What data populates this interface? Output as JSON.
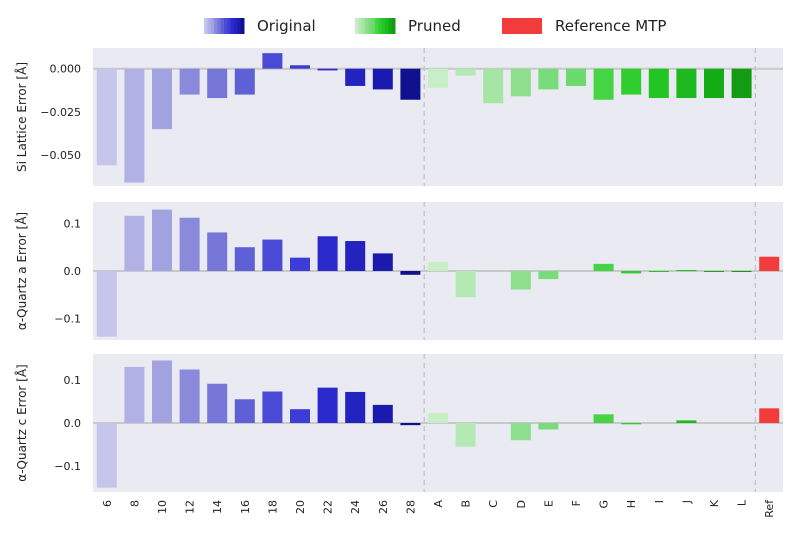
{
  "chart_data": {
    "type": "bar",
    "categories": [
      "6",
      "8",
      "10",
      "12",
      "14",
      "16",
      "18",
      "20",
      "22",
      "24",
      "26",
      "28",
      "A",
      "B",
      "C",
      "D",
      "E",
      "F",
      "G",
      "H",
      "I",
      "J",
      "K",
      "L",
      "Ref"
    ],
    "groups": {
      "original": [
        "6",
        "8",
        "10",
        "12",
        "14",
        "16",
        "18",
        "20",
        "22",
        "24",
        "26",
        "28"
      ],
      "pruned": [
        "A",
        "B",
        "C",
        "D",
        "E",
        "F",
        "G",
        "H",
        "I",
        "J",
        "K",
        "L"
      ],
      "reference": [
        "Ref"
      ]
    },
    "legend": {
      "position": "top-center",
      "entries": [
        {
          "key": "original",
          "label": "Original"
        },
        {
          "key": "pruned",
          "label": "Pruned"
        },
        {
          "key": "reference",
          "label": "Reference MTP"
        }
      ]
    },
    "colors": {
      "original": [
        "#c6c6ec",
        "#b1b1e6",
        "#a3a3e2",
        "#8a8add",
        "#7676d9",
        "#6060d6",
        "#4a4ad5",
        "#3c3cd6",
        "#2a2acc",
        "#2323bf",
        "#1a1aae",
        "#111190"
      ],
      "pruned": [
        "#c7eec7",
        "#b4e9b4",
        "#a5e6a5",
        "#8ddf8d",
        "#79db79",
        "#6bd96b",
        "#44d444",
        "#2fce2f",
        "#22c522",
        "#1eb91e",
        "#14ac14",
        "#139b13"
      ],
      "reference": "#f23b3b",
      "background": "#eaeaf2",
      "zero_line": "#c8c8c8",
      "divider": "#c0c0c0"
    },
    "panels": [
      {
        "ylabel": "Si Lattice Error [Å]",
        "ylim": [
          -0.068,
          0.012
        ],
        "yticks": [
          0.0,
          -0.025,
          -0.05
        ],
        "ytick_labels": [
          "0.000",
          "−0.025",
          "−0.050"
        ],
        "values": [
          -0.056,
          -0.066,
          -0.035,
          -0.015,
          -0.017,
          -0.015,
          0.009,
          0.002,
          -0.001,
          -0.01,
          -0.012,
          -0.018,
          -0.011,
          -0.004,
          -0.02,
          -0.016,
          -0.012,
          -0.01,
          -0.018,
          -0.015,
          -0.017,
          -0.017,
          -0.017,
          -0.017,
          null
        ]
      },
      {
        "ylabel": "α-Quartz a Error [Å]",
        "ylim": [
          -0.145,
          0.145
        ],
        "yticks": [
          0.1,
          0.0,
          -0.1
        ],
        "ytick_labels": [
          "0.1",
          "0.0",
          "−0.1"
        ],
        "values": [
          -0.138,
          0.116,
          0.129,
          0.112,
          0.081,
          0.05,
          0.066,
          0.028,
          0.073,
          0.063,
          0.037,
          -0.008,
          0.019,
          -0.055,
          0.0,
          -0.039,
          -0.017,
          0.0,
          0.015,
          -0.005,
          -0.002,
          0.002,
          -0.002,
          -0.002,
          0.03
        ]
      },
      {
        "ylabel": "α-Quartz c Error [Å]",
        "ylim": [
          -0.16,
          0.16
        ],
        "yticks": [
          0.1,
          0.0,
          -0.1
        ],
        "ytick_labels": [
          "0.1",
          "0.0",
          "−0.1"
        ],
        "values": [
          -0.15,
          0.13,
          0.145,
          0.124,
          0.091,
          0.055,
          0.073,
          0.032,
          0.082,
          0.072,
          0.042,
          -0.005,
          0.023,
          -0.055,
          0.0,
          -0.04,
          -0.015,
          0.0,
          0.02,
          -0.003,
          0.0,
          0.006,
          0.0,
          0.0,
          0.034
        ]
      }
    ]
  }
}
